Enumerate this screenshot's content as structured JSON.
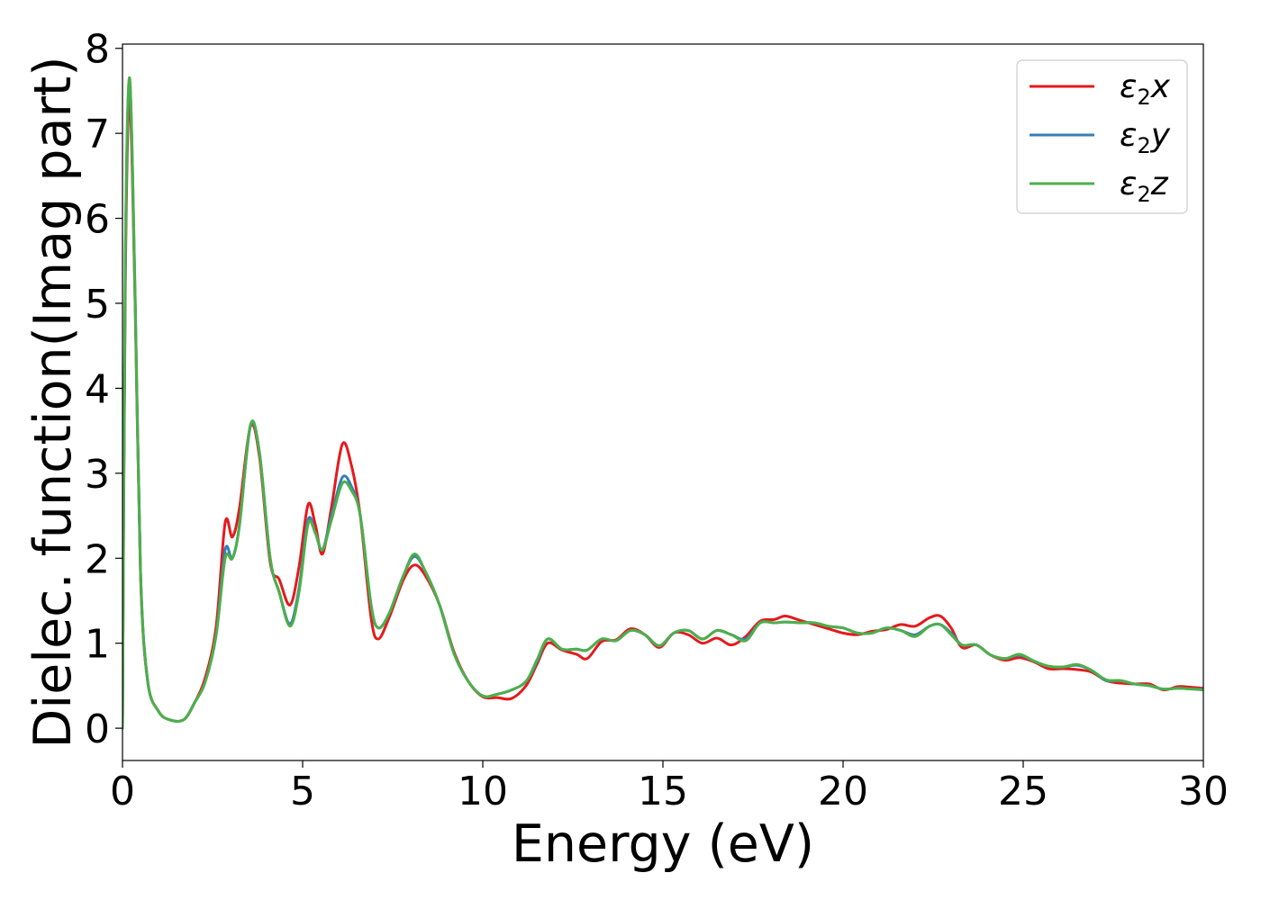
{
  "chart_data": {
    "type": "line",
    "title": "",
    "xlabel": "Energy (eV)",
    "ylabel": "Dielec. function(Imag part)",
    "xlim": [
      0,
      30
    ],
    "ylim": [
      -0.38,
      8.05
    ],
    "xticks": [
      "0",
      "5",
      "10",
      "15",
      "20",
      "25",
      "30"
    ],
    "yticks": [
      "0",
      "1",
      "2",
      "3",
      "4",
      "5",
      "6",
      "7",
      "8"
    ],
    "grid": false,
    "legend_position": "top-right",
    "series": [
      {
        "name": "ε2x",
        "legend_base": "ε",
        "legend_sub": "2",
        "legend_var": "x",
        "color": "#e41a1c",
        "x": [
          0.0,
          0.08,
          0.2,
          0.35,
          0.5,
          0.7,
          1.0,
          1.3,
          1.7,
          2.0,
          2.3,
          2.6,
          2.85,
          3.05,
          3.25,
          3.55,
          3.8,
          4.1,
          4.35,
          4.65,
          4.9,
          5.15,
          5.35,
          5.55,
          5.8,
          6.1,
          6.35,
          6.6,
          6.9,
          7.1,
          7.4,
          7.8,
          8.1,
          8.4,
          8.8,
          9.2,
          9.6,
          10.0,
          10.4,
          10.8,
          11.2,
          11.5,
          11.8,
          12.2,
          12.6,
          12.9,
          13.3,
          13.7,
          14.1,
          14.5,
          14.9,
          15.3,
          15.7,
          16.1,
          16.5,
          16.9,
          17.3,
          17.7,
          18.1,
          18.4,
          18.8,
          19.2,
          19.6,
          20.0,
          20.4,
          20.8,
          21.2,
          21.6,
          22.0,
          22.4,
          22.7,
          23.0,
          23.3,
          23.7,
          24.1,
          24.5,
          24.9,
          25.3,
          25.7,
          26.1,
          26.5,
          26.9,
          27.3,
          27.7,
          28.1,
          28.5,
          28.9,
          29.3,
          29.7,
          30.0
        ],
        "values": [
          0.0,
          5.3,
          7.4,
          5.0,
          1.8,
          0.55,
          0.2,
          0.1,
          0.1,
          0.3,
          0.6,
          1.2,
          2.42,
          2.25,
          2.6,
          3.55,
          3.2,
          1.95,
          1.75,
          1.45,
          1.9,
          2.63,
          2.4,
          2.05,
          2.6,
          3.34,
          3.1,
          2.5,
          1.3,
          1.05,
          1.3,
          1.75,
          1.92,
          1.8,
          1.45,
          0.9,
          0.55,
          0.37,
          0.36,
          0.35,
          0.5,
          0.75,
          1.0,
          0.92,
          0.87,
          0.82,
          1.02,
          1.04,
          1.17,
          1.1,
          0.95,
          1.12,
          1.1,
          1.0,
          1.06,
          0.98,
          1.08,
          1.26,
          1.28,
          1.32,
          1.27,
          1.22,
          1.17,
          1.12,
          1.1,
          1.14,
          1.16,
          1.22,
          1.2,
          1.3,
          1.32,
          1.18,
          0.95,
          0.98,
          0.86,
          0.8,
          0.83,
          0.78,
          0.7,
          0.7,
          0.69,
          0.66,
          0.56,
          0.53,
          0.52,
          0.52,
          0.45,
          0.49,
          0.48,
          0.47
        ]
      },
      {
        "name": "ε2y",
        "legend_base": "ε",
        "legend_sub": "2",
        "legend_var": "y",
        "color": "#377eb8",
        "x": [
          0.0,
          0.08,
          0.2,
          0.35,
          0.5,
          0.7,
          1.0,
          1.3,
          1.7,
          2.0,
          2.3,
          2.6,
          2.85,
          3.05,
          3.25,
          3.55,
          3.8,
          4.1,
          4.35,
          4.65,
          4.9,
          5.15,
          5.35,
          5.55,
          5.8,
          6.1,
          6.35,
          6.6,
          6.9,
          7.1,
          7.4,
          7.8,
          8.1,
          8.4,
          8.8,
          9.2,
          9.6,
          10.0,
          10.4,
          10.8,
          11.2,
          11.5,
          11.8,
          12.2,
          12.6,
          12.9,
          13.3,
          13.7,
          14.1,
          14.5,
          14.9,
          15.3,
          15.7,
          16.1,
          16.5,
          16.9,
          17.3,
          17.7,
          18.1,
          18.4,
          18.8,
          19.2,
          19.6,
          20.0,
          20.4,
          20.8,
          21.2,
          21.6,
          22.0,
          22.4,
          22.7,
          23.0,
          23.3,
          23.7,
          24.1,
          24.5,
          24.9,
          25.3,
          25.7,
          26.1,
          26.5,
          26.9,
          27.3,
          27.7,
          28.1,
          28.5,
          28.9,
          29.3,
          29.7,
          30.0
        ],
        "values": [
          0.0,
          5.5,
          7.62,
          5.1,
          1.85,
          0.55,
          0.2,
          0.1,
          0.1,
          0.3,
          0.55,
          1.1,
          2.1,
          2.0,
          2.4,
          3.55,
          3.25,
          2.0,
          1.6,
          1.23,
          1.65,
          2.45,
          2.3,
          2.1,
          2.5,
          2.95,
          2.85,
          2.5,
          1.45,
          1.18,
          1.35,
          1.8,
          2.02,
          1.85,
          1.45,
          0.88,
          0.55,
          0.38,
          0.4,
          0.45,
          0.55,
          0.78,
          1.05,
          0.93,
          0.93,
          0.92,
          1.05,
          1.03,
          1.15,
          1.1,
          0.97,
          1.12,
          1.15,
          1.05,
          1.15,
          1.1,
          1.05,
          1.24,
          1.24,
          1.25,
          1.24,
          1.24,
          1.2,
          1.18,
          1.12,
          1.12,
          1.18,
          1.15,
          1.1,
          1.2,
          1.22,
          1.12,
          0.98,
          0.98,
          0.86,
          0.82,
          0.86,
          0.79,
          0.73,
          0.72,
          0.74,
          0.68,
          0.56,
          0.56,
          0.52,
          0.5,
          0.46,
          0.47,
          0.46,
          0.46
        ]
      },
      {
        "name": "ε2z",
        "legend_base": "ε",
        "legend_sub": "2",
        "legend_var": "z",
        "color": "#4daf4a",
        "x": [
          0.0,
          0.08,
          0.2,
          0.35,
          0.5,
          0.7,
          1.0,
          1.3,
          1.7,
          2.0,
          2.3,
          2.6,
          2.85,
          3.05,
          3.25,
          3.55,
          3.8,
          4.1,
          4.35,
          4.65,
          4.9,
          5.15,
          5.35,
          5.55,
          5.8,
          6.1,
          6.35,
          6.6,
          6.9,
          7.1,
          7.4,
          7.8,
          8.1,
          8.4,
          8.8,
          9.2,
          9.6,
          10.0,
          10.4,
          10.8,
          11.2,
          11.5,
          11.8,
          12.2,
          12.6,
          12.9,
          13.3,
          13.7,
          14.1,
          14.5,
          14.9,
          15.3,
          15.7,
          16.1,
          16.5,
          16.9,
          17.3,
          17.7,
          18.1,
          18.4,
          18.8,
          19.2,
          19.6,
          20.0,
          20.4,
          20.8,
          21.2,
          21.6,
          22.0,
          22.4,
          22.7,
          23.0,
          23.3,
          23.7,
          24.1,
          24.5,
          24.9,
          25.3,
          25.7,
          26.1,
          26.5,
          26.9,
          27.3,
          27.7,
          28.1,
          28.5,
          28.9,
          29.3,
          29.7,
          30.0
        ],
        "values": [
          0.0,
          5.6,
          7.65,
          5.1,
          1.85,
          0.55,
          0.2,
          0.1,
          0.1,
          0.3,
          0.55,
          1.1,
          2.0,
          2.0,
          2.4,
          3.57,
          3.25,
          2.0,
          1.6,
          1.2,
          1.6,
          2.4,
          2.3,
          2.1,
          2.45,
          2.88,
          2.8,
          2.5,
          1.45,
          1.18,
          1.35,
          1.8,
          2.05,
          1.85,
          1.45,
          0.88,
          0.55,
          0.38,
          0.4,
          0.45,
          0.55,
          0.8,
          1.05,
          0.93,
          0.93,
          0.92,
          1.05,
          1.03,
          1.15,
          1.1,
          0.97,
          1.12,
          1.15,
          1.05,
          1.15,
          1.1,
          1.03,
          1.24,
          1.24,
          1.25,
          1.24,
          1.24,
          1.2,
          1.18,
          1.12,
          1.12,
          1.18,
          1.15,
          1.08,
          1.2,
          1.22,
          1.1,
          0.98,
          0.98,
          0.86,
          0.82,
          0.87,
          0.79,
          0.73,
          0.72,
          0.75,
          0.68,
          0.57,
          0.56,
          0.52,
          0.5,
          0.46,
          0.47,
          0.46,
          0.45
        ]
      }
    ]
  }
}
